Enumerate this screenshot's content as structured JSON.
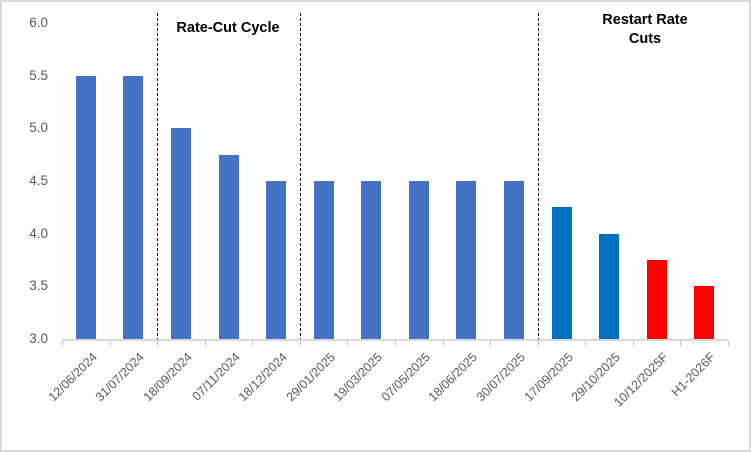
{
  "chart_data": {
    "type": "bar",
    "title": "",
    "xlabel": "",
    "ylabel": "",
    "categories": [
      "12/06/2024",
      "31/07/2024",
      "18/09/2024",
      "07/11/2024",
      "18/12/2024",
      "29/01/2025",
      "19/03/2025",
      "07/05/2025",
      "18/06/2025",
      "30/07/2025",
      "17/09/2025",
      "29/10/2025",
      "10/12/2025F",
      "H1-2026F"
    ],
    "values": [
      5.5,
      5.5,
      5.0,
      4.75,
      4.5,
      4.5,
      4.5,
      4.5,
      4.5,
      4.5,
      4.25,
      4.0,
      3.75,
      3.5
    ],
    "bar_colors": [
      "#4472C4",
      "#4472C4",
      "#4472C4",
      "#4472C4",
      "#4472C4",
      "#4472C4",
      "#4472C4",
      "#4472C4",
      "#4472C4",
      "#4472C4",
      "#0070C0",
      "#0070C0",
      "#FF0000",
      "#FF0000"
    ],
    "ylim": [
      3.0,
      6.0
    ],
    "yticks": [
      "3.0",
      "3.5",
      "4.0",
      "4.5",
      "5.0",
      "5.5",
      "6.0"
    ],
    "grid": false,
    "legend_position": "none",
    "annotations": [
      {
        "text": "Rate-Cut Cycle"
      },
      {
        "text": "Restart Rate Cuts"
      }
    ],
    "separators_after_category_index": [
      1,
      4,
      9
    ],
    "colors": {
      "actual_cut_cycle": "#4472C4",
      "restart_cuts": "#0070C0",
      "forecast": "#FF0000",
      "axis_text": "#595959",
      "axis_line": "#D9D9D9",
      "separator": "#000000"
    }
  }
}
